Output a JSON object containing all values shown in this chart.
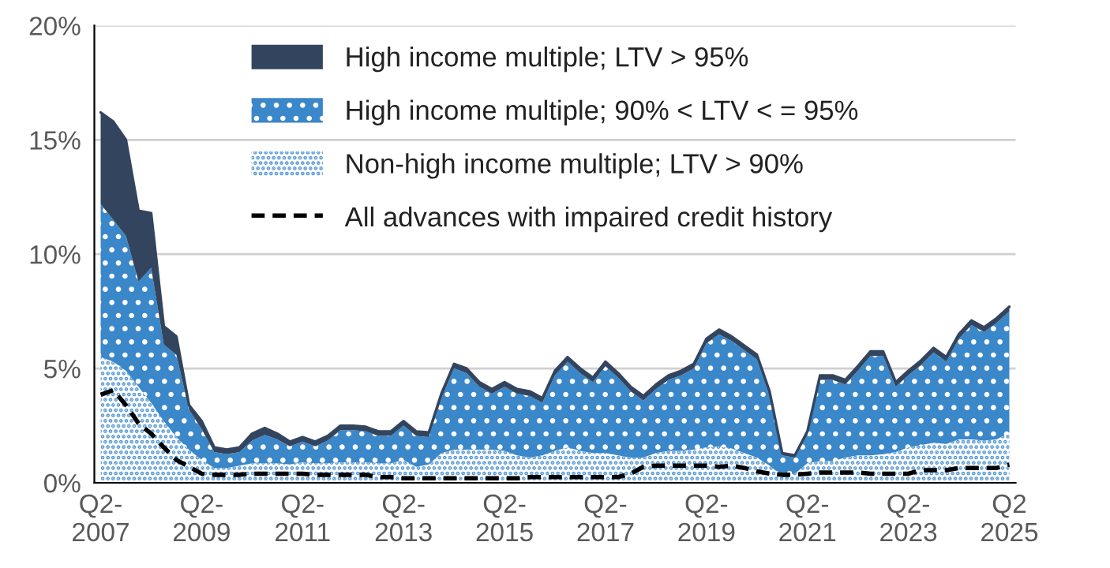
{
  "chart_data": {
    "type": "area",
    "stacked": true,
    "categories": [
      "Q2-\n2007",
      null,
      null,
      null,
      null,
      null,
      null,
      null,
      "Q2-\n2009",
      null,
      null,
      null,
      null,
      null,
      null,
      null,
      "Q2-\n2011",
      null,
      null,
      null,
      null,
      null,
      null,
      null,
      "Q2-\n2013",
      null,
      null,
      null,
      null,
      null,
      null,
      null,
      "Q2-\n2015",
      null,
      null,
      null,
      null,
      null,
      null,
      null,
      "Q2-\n2017",
      null,
      null,
      null,
      null,
      null,
      null,
      null,
      "Q2-\n2019",
      null,
      null,
      null,
      null,
      null,
      null,
      null,
      "Q2-\n2021",
      null,
      null,
      null,
      null,
      null,
      null,
      null,
      "Q2-\n2023",
      null,
      null,
      null,
      null,
      null,
      null,
      null,
      "Q2\n2025"
    ],
    "series": [
      {
        "name": "Non-high income multiple; LTV > 90%",
        "color": "#5b9bd5",
        "values": [
          5.5,
          5.3,
          4.9,
          4.2,
          3.5,
          2.7,
          2.0,
          1.45,
          1.0,
          0.65,
          0.65,
          0.75,
          0.85,
          0.85,
          0.85,
          0.8,
          0.9,
          0.85,
          0.85,
          0.9,
          0.9,
          0.9,
          0.85,
          0.85,
          1.0,
          0.7,
          0.8,
          1.3,
          1.45,
          1.45,
          1.45,
          1.45,
          1.4,
          1.2,
          1.1,
          1.2,
          1.4,
          1.55,
          1.4,
          1.3,
          1.3,
          1.2,
          1.1,
          1.1,
          1.3,
          1.4,
          1.4,
          1.45,
          1.55,
          1.6,
          1.5,
          1.3,
          1.1,
          0.75,
          0.3,
          0.4,
          0.85,
          0.95,
          0.95,
          1.1,
          1.2,
          1.2,
          1.25,
          1.35,
          1.55,
          1.65,
          1.75,
          1.7,
          1.9,
          1.9,
          1.85,
          1.9,
          2.2
        ]
      },
      {
        "name": "High income multiple; 90% < LTV < = 95%",
        "color": "#3a87c9",
        "values": [
          6.7,
          6.2,
          5.9,
          4.6,
          5.9,
          3.35,
          3.6,
          1.75,
          1.35,
          0.7,
          0.6,
          0.6,
          1.0,
          1.25,
          1.05,
          0.8,
          0.9,
          0.75,
          1.0,
          1.4,
          1.4,
          1.35,
          1.2,
          1.2,
          1.5,
          1.35,
          1.2,
          2.4,
          3.55,
          3.35,
          2.75,
          2.45,
          2.8,
          2.7,
          2.7,
          2.3,
          3.3,
          3.75,
          3.4,
          3.1,
          3.8,
          3.4,
          2.9,
          2.5,
          2.8,
          3.1,
          3.3,
          3.55,
          4.55,
          4.9,
          4.7,
          4.5,
          4.3,
          3.05,
          0.9,
          0.7,
          1.25,
          3.55,
          3.55,
          3.2,
          3.7,
          4.35,
          4.3,
          2.85,
          3.15,
          3.5,
          3.95,
          3.6,
          4.4,
          5.0,
          4.75,
          5.1,
          5.3
        ]
      },
      {
        "name": "High income multiple; LTV > 95%",
        "color": "#33455e",
        "values": [
          4.0,
          4.3,
          4.2,
          3.1,
          2.4,
          0.8,
          0.8,
          0.2,
          0.35,
          0.2,
          0.2,
          0.2,
          0.3,
          0.3,
          0.25,
          0.2,
          0.2,
          0.2,
          0.2,
          0.2,
          0.2,
          0.2,
          0.2,
          0.2,
          0.2,
          0.2,
          0.2,
          0.2,
          0.2,
          0.2,
          0.2,
          0.2,
          0.2,
          0.2,
          0.2,
          0.2,
          0.2,
          0.2,
          0.2,
          0.2,
          0.2,
          0.2,
          0.2,
          0.2,
          0.2,
          0.2,
          0.2,
          0.2,
          0.2,
          0.2,
          0.2,
          0.2,
          0.2,
          0.2,
          0.1,
          0.1,
          0.15,
          0.2,
          0.2,
          0.2,
          0.2,
          0.2,
          0.2,
          0.2,
          0.2,
          0.2,
          0.2,
          0.2,
          0.2,
          0.2,
          0.2,
          0.2,
          0.2
        ]
      },
      {
        "name": "All advances with impaired credit history",
        "type": "line",
        "line_style": "dashed",
        "color": "#000000",
        "values": [
          3.85,
          4.05,
          3.4,
          2.6,
          2.15,
          1.55,
          1.0,
          0.7,
          0.4,
          0.35,
          0.35,
          0.35,
          0.4,
          0.4,
          0.4,
          0.4,
          0.4,
          0.35,
          0.35,
          0.35,
          0.35,
          0.35,
          0.25,
          0.25,
          0.2,
          0.2,
          0.2,
          0.2,
          0.2,
          0.2,
          0.2,
          0.2,
          0.2,
          0.2,
          0.25,
          0.25,
          0.25,
          0.25,
          0.25,
          0.25,
          0.25,
          0.25,
          0.4,
          0.7,
          0.75,
          0.75,
          0.75,
          0.75,
          0.75,
          0.7,
          0.75,
          0.65,
          0.5,
          0.4,
          0.35,
          0.35,
          0.4,
          0.45,
          0.45,
          0.45,
          0.45,
          0.4,
          0.4,
          0.4,
          0.4,
          0.55,
          0.55,
          0.55,
          0.65,
          0.65,
          0.65,
          0.65,
          0.8
        ]
      }
    ],
    "ylim": [
      0,
      20
    ],
    "yticks": [
      {
        "value": 0,
        "label": "0%"
      },
      {
        "value": 5,
        "label": "5%"
      },
      {
        "value": 10,
        "label": "10%"
      },
      {
        "value": 15,
        "label": "15%"
      },
      {
        "value": 20,
        "label": "20%"
      }
    ],
    "grid": "y",
    "legend": "top"
  }
}
